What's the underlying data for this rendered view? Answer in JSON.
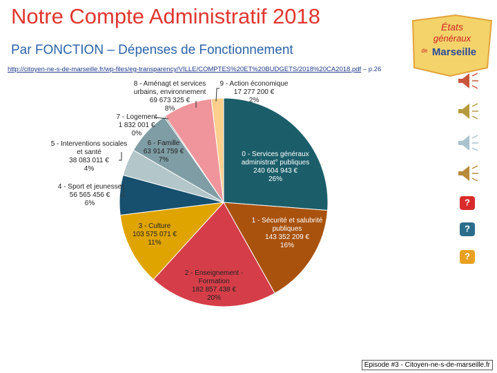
{
  "chart_data": {
    "type": "pie",
    "title": "Notre Compte Administratif 2018",
    "subtitle": "Par FONCTION – Dépenses de Fonctionnement",
    "categories": [
      "0 - Services généraux administrat° publiques",
      "1 - Sécurité et salubrité publiques",
      "2 - Enseignement - Formation",
      "3 - Culture",
      "4 - Sport et jeunesse",
      "5 - Interventions sociales et santé",
      "6 - Famille",
      "7 - Logement",
      "8 - Aménagt et services urbains, environnement",
      "9 - Action économique"
    ],
    "values": [
      240604943,
      143352209,
      182857438,
      103575071,
      56565456,
      38083011,
      63914759,
      1832001,
      69673325,
      17277200
    ],
    "value_labels": [
      "240 604 943 €",
      "143 352 209 €",
      "182 857 438 €",
      "103 575 071 €",
      "56 565 456 €",
      "38 083 011 €",
      "63 914 759 €",
      "1 832 001 €",
      "69 673 325 €",
      "17 277 200 €"
    ],
    "percent_labels": [
      "26%",
      "16%",
      "20%",
      "11%",
      "6%",
      "4%",
      "7%",
      "0%",
      "8%",
      "2%"
    ],
    "colors": [
      "#1b5e6a",
      "#a9520e",
      "#d53e48",
      "#dfa400",
      "#17506f",
      "#b3c6ca",
      "#7f9da4",
      "#5f7e86",
      "#f0959b",
      "#fdcf8c"
    ]
  },
  "source_link": "http://citoyen-ne-s-de-marseille.fr/wp-files/eg-transparency/VILLE/COMPTES%20ET%20BUDGETS/2018%20CA2018.pdf",
  "source_page": "– p.26",
  "logo": {
    "line1": "États",
    "line2": "généraux",
    "line3": "de",
    "line4": "Marseille"
  },
  "help_buttons": [
    "?",
    "?",
    "?"
  ],
  "footer": "Episode #3 - Citoyen-ne-s-de-marseille.fr"
}
